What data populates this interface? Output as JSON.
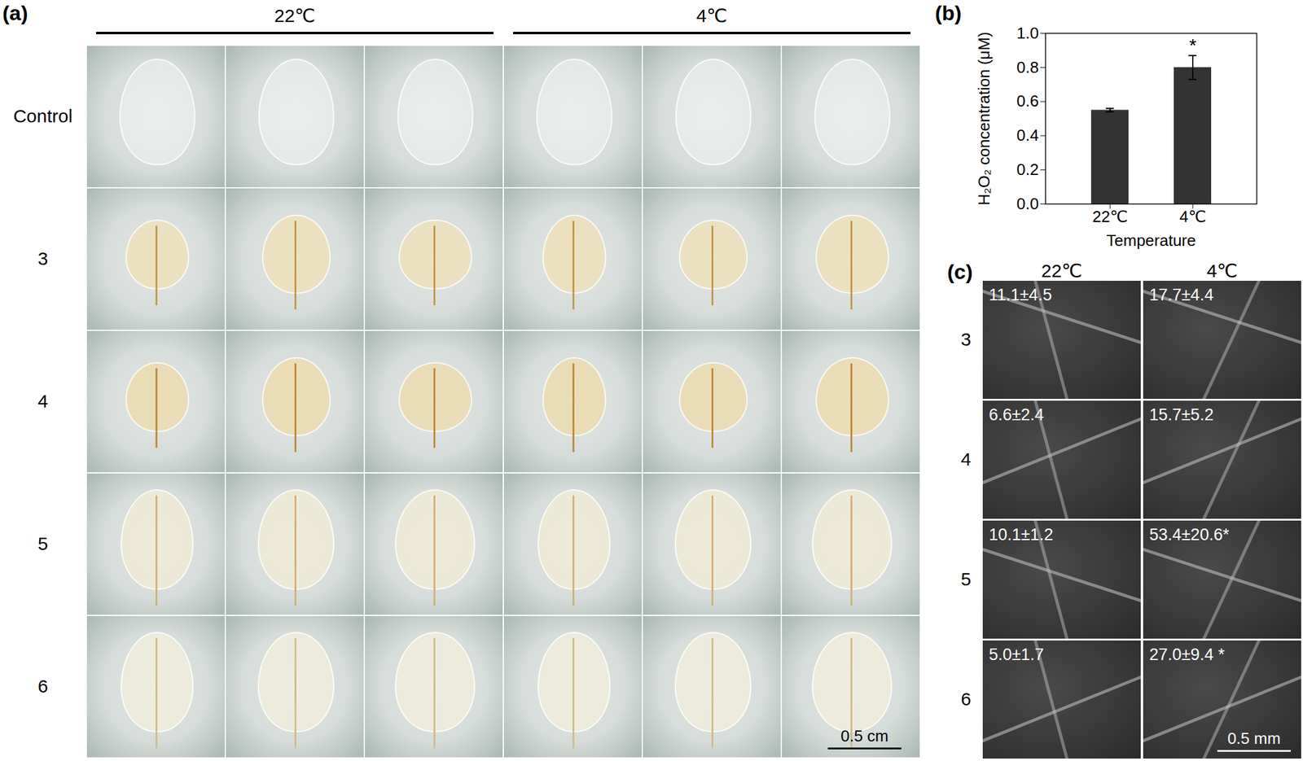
{
  "panel_a": {
    "label": "(a)",
    "columns": [
      "22℃",
      "4℃"
    ],
    "rows": [
      "Control",
      "3",
      "4",
      "5",
      "6"
    ],
    "scale_bar": "0.5 cm"
  },
  "chart_data": {
    "type": "bar",
    "panel_label": "(b)",
    "categories": [
      "22℃",
      "4℃"
    ],
    "values": [
      0.55,
      0.8
    ],
    "errors": [
      0.01,
      0.07
    ],
    "significance_labels": [
      null,
      "*"
    ],
    "color": "#333333",
    "x_label": "Temperature",
    "y_label": "H₂O₂ concentration (μM)",
    "ylim": [
      0,
      1.0
    ],
    "yticks": [
      {
        "value": 0,
        "label": "0.0"
      },
      {
        "value": 0.2,
        "label": "0.2"
      },
      {
        "value": 0.4,
        "label": "0.4"
      },
      {
        "value": 0.6,
        "label": "0.6"
      },
      {
        "value": 0.8,
        "label": "0.8"
      },
      {
        "value": 1.0,
        "label": "1.0"
      }
    ]
  },
  "panel_c": {
    "label": "(c)",
    "columns": [
      "22℃",
      "4℃"
    ],
    "rows": [
      "3",
      "4",
      "5",
      "6"
    ],
    "cells": [
      [
        "11.1±4.5",
        "17.7±4.4"
      ],
      [
        "6.6±2.4",
        "15.7±5.2"
      ],
      [
        "10.1±1.2",
        "53.4±20.6*"
      ],
      [
        "5.0±1.7",
        "27.0±9.4 *"
      ]
    ],
    "scale_bar": "0.5 mm"
  }
}
